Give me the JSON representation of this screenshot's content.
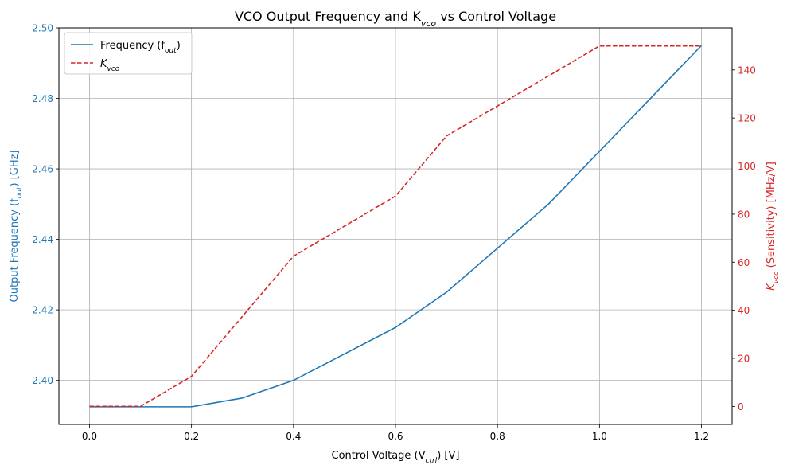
{
  "chart_data": {
    "type": "line",
    "title": "VCO Output Frequency and K",
    "title_sub": "vco",
    "title_rest": " vs Control Voltage",
    "xlabel": "Control Voltage (V",
    "xlabel_sub": "ctrl",
    "xlabel_rest": ") [V]",
    "ylabel_left": "Output Frequency (f",
    "ylabel_left_sub": "out",
    "ylabel_left_rest": ") [GHz]",
    "ylabel_right": "K",
    "ylabel_right_sub": "vco",
    "ylabel_right_rest": " (Sensitivity) [MHz/V]",
    "x": [
      0.0,
      0.1,
      0.2,
      0.3,
      0.4,
      0.5,
      0.6,
      0.7,
      0.8,
      0.9,
      1.0,
      1.1,
      1.2
    ],
    "xlim": [
      -0.06,
      1.26
    ],
    "ylim_left": [
      2.3875,
      2.5
    ],
    "ylim_right": [
      -7.5,
      157.5
    ],
    "xticks": [
      "0.0",
      "0.2",
      "0.4",
      "0.6",
      "0.8",
      "1.0",
      "1.2"
    ],
    "xtick_values": [
      0.0,
      0.2,
      0.4,
      0.6,
      0.8,
      1.0,
      1.2
    ],
    "yticks_left": [
      "2.40",
      "2.42",
      "2.44",
      "2.46",
      "2.48",
      "2.50"
    ],
    "ytick_values_left": [
      2.4,
      2.42,
      2.44,
      2.46,
      2.48,
      2.5
    ],
    "yticks_right": [
      "0",
      "20",
      "40",
      "60",
      "80",
      "100",
      "120",
      "140"
    ],
    "ytick_values_right": [
      0,
      20,
      40,
      60,
      80,
      100,
      120,
      140
    ],
    "grid": true,
    "legend_position": "top-left",
    "series": [
      {
        "name": "Frequency (f",
        "name_sub": "out",
        "name_rest": ")",
        "axis": "left",
        "style": "solid",
        "color": "#1f77b4",
        "values": [
          2.3925,
          2.3925,
          2.3925,
          2.395,
          2.4,
          2.4075,
          2.415,
          2.425,
          2.4375,
          2.45,
          2.465,
          2.48,
          2.495
        ]
      },
      {
        "name": "K",
        "name_sub": "vco",
        "name_rest": "",
        "axis": "right",
        "style": "dashed",
        "color": "#d62728",
        "values": [
          0,
          0,
          12.5,
          37.5,
          62.5,
          75,
          87.5,
          112.5,
          125,
          137.5,
          150,
          150,
          150
        ]
      }
    ],
    "colors": {
      "left_axis": "#1f77b4",
      "right_axis": "#d62728",
      "grid": "#b0b0b0"
    }
  }
}
